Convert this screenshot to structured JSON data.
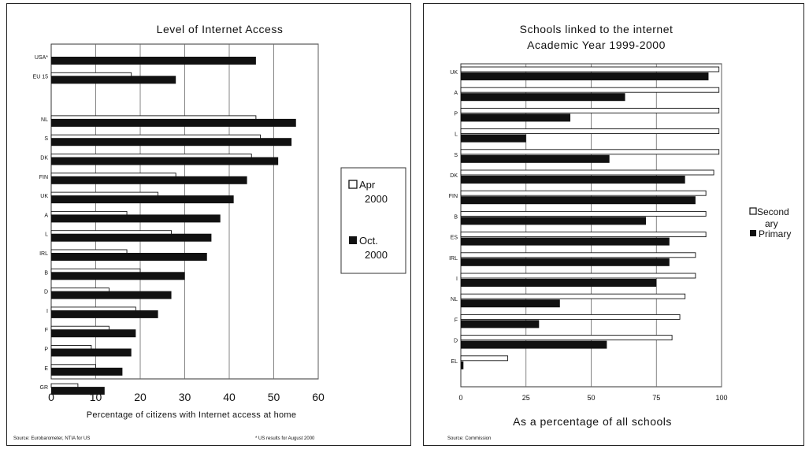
{
  "left": {
    "title": "Level of Internet Access",
    "xlabel": "Percentage of citizens with Internet access at home",
    "source": "Source: Eurobarometer, NTIA for US",
    "source_right": "* US results for August 2000"
  },
  "right": {
    "title_line1": "Schools linked to the internet",
    "title_line2": "Academic Year 1999-2000",
    "xlabel": "As a percentage of all schools",
    "source": "Source: Commission"
  },
  "chart_data": [
    {
      "type": "bar",
      "orientation": "horizontal",
      "title": "Level of Internet Access",
      "xlabel": "Percentage of citizens with Internet access at home",
      "ylabel": "",
      "xlim": [
        0,
        60
      ],
      "xticks": [
        0,
        10,
        20,
        30,
        40,
        50,
        60
      ],
      "grid": true,
      "legend_position": "right",
      "categories": [
        "USA*",
        "EU 15",
        "NL",
        "S",
        "DK",
        "FIN",
        "UK",
        "A",
        "L",
        "IRL",
        "B",
        "D",
        "I",
        "F",
        "P",
        "E",
        "GR"
      ],
      "series": [
        {
          "name": "Apr 2000",
          "color": "#ffffff",
          "values": [
            null,
            18,
            46,
            47,
            45,
            28,
            24,
            17,
            27,
            17,
            20,
            13,
            19,
            13,
            9,
            10,
            6
          ]
        },
        {
          "name": "Oct. 2000",
          "color": "#111111",
          "values": [
            46,
            28,
            55,
            54,
            51,
            44,
            41,
            38,
            36,
            35,
            30,
            27,
            24,
            19,
            18,
            16,
            12
          ]
        }
      ]
    },
    {
      "type": "bar",
      "orientation": "horizontal",
      "title": "Schools linked to the internet Academic Year 1999-2000",
      "xlabel": "As a percentage of all schools",
      "ylabel": "",
      "xlim": [
        0,
        100
      ],
      "xticks": [
        0,
        25,
        50,
        75,
        100
      ],
      "grid": true,
      "legend_position": "right",
      "categories": [
        "UK",
        "A",
        "P",
        "L",
        "S",
        "DK",
        "FIN",
        "B",
        "ES",
        "IRL",
        "I",
        "NL",
        "F",
        "D",
        "EL"
      ],
      "series": [
        {
          "name": "Secondary",
          "color": "#ffffff",
          "values": [
            99,
            99,
            99,
            99,
            99,
            97,
            94,
            94,
            94,
            90,
            90,
            86,
            84,
            81,
            18
          ]
        },
        {
          "name": "Primary",
          "color": "#111111",
          "values": [
            95,
            63,
            42,
            25,
            57,
            86,
            90,
            71,
            80,
            80,
            75,
            38,
            30,
            56,
            1
          ]
        }
      ]
    }
  ]
}
